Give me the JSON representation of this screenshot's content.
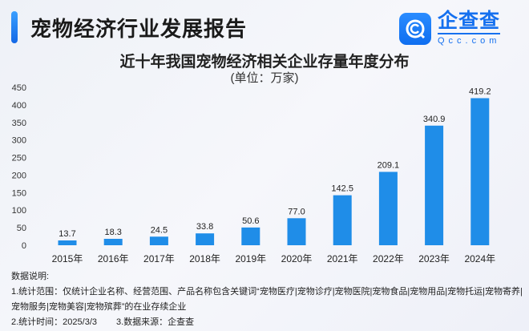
{
  "header": {
    "title": "宠物经济行业发展报告",
    "logo_cn": "企查查",
    "logo_en": "Qcc.com"
  },
  "chart_data": {
    "type": "bar",
    "title": "近十年我国宠物经济相关企业存量年度分布",
    "subtitle": "(单位：万家)",
    "categories": [
      "2015年",
      "2016年",
      "2017年",
      "2018年",
      "2019年",
      "2020年",
      "2021年",
      "2022年",
      "2023年",
      "2024年"
    ],
    "values": [
      13.7,
      18.3,
      24.5,
      33.8,
      50.6,
      77.0,
      142.5,
      209.1,
      340.9,
      419.2
    ],
    "value_labels": [
      "13.7",
      "18.3",
      "24.5",
      "33.8",
      "50.6",
      "77.0",
      "142.5",
      "209.1",
      "340.9",
      "419.2"
    ],
    "ylim": [
      0,
      450
    ],
    "yticks": [
      0,
      50,
      100,
      150,
      200,
      250,
      300,
      350,
      400,
      450
    ],
    "grid": false,
    "bar_color": "#1f8de8"
  },
  "notes": {
    "heading": "数据说明:",
    "line1": "1.统计范围：仅统计企业名称、经营范围、产品名称包含关键词“宠物医疗|宠物诊疗|宠物医院|宠物食品|宠物用品|宠物托运|宠物寄养|宠物服务|宠物美容|宠物殡葬”的在业存续企业",
    "time": "2.统计时间：2025/3/3",
    "source": "3.数据来源：企查查"
  }
}
